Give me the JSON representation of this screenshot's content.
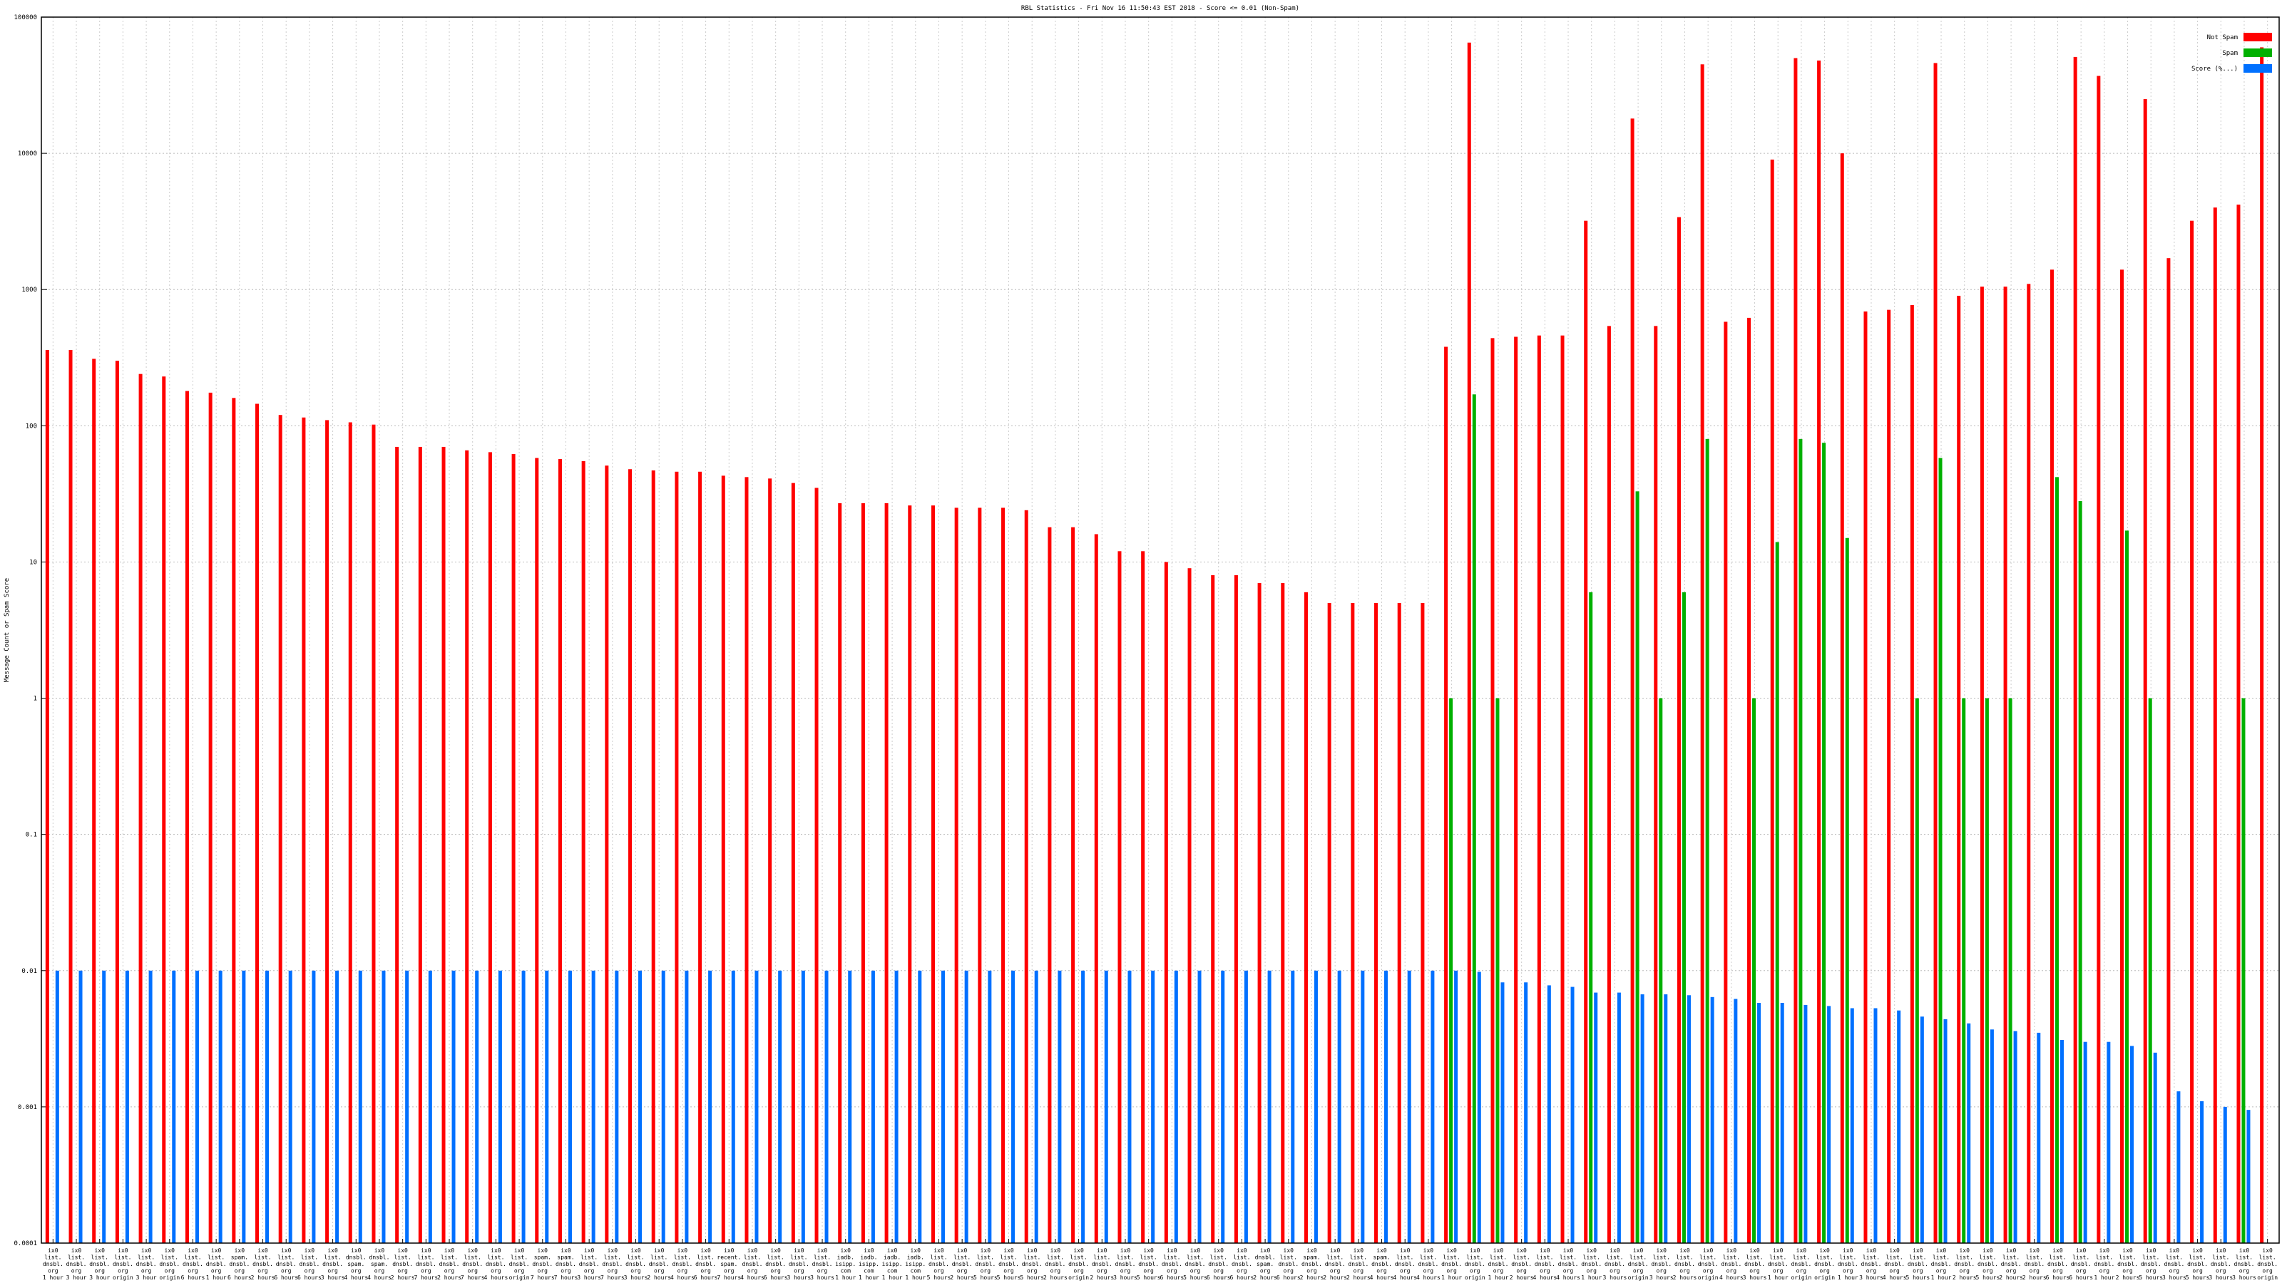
{
  "chart_data": {
    "type": "bar",
    "title": "RBL Statistics - Fri Nov 16 11:50:43 EST 2018 - Score <= 0.01 (Non-Spam)",
    "ylabel": "Message Count or Spam Score",
    "xlabel": "",
    "yscale": "log",
    "ylim": [
      0.0001,
      100000
    ],
    "yticks": [
      "0.0001",
      "0.001",
      "0.01",
      "0.1",
      "1",
      "10",
      "100",
      "1000",
      "10000",
      "100000"
    ],
    "grid": true,
    "legend_position": "top-right",
    "colors": {
      "not_spam": "#ff0000",
      "spam": "#00b000",
      "score": "#0070ff"
    },
    "series": [
      {
        "name": "Not Spam",
        "values": [
          360,
          360,
          310,
          300,
          240,
          230,
          180,
          175,
          160,
          145,
          120,
          115,
          110,
          106,
          102,
          70,
          70,
          70,
          66,
          64,
          62,
          58,
          57,
          55,
          51,
          48,
          47,
          46,
          46,
          43,
          42,
          41,
          38,
          35,
          27,
          27,
          27,
          26,
          26,
          25,
          25,
          25,
          24,
          18,
          18,
          16,
          12,
          12,
          10,
          9,
          8,
          8,
          7,
          7,
          6,
          5,
          5,
          5,
          5,
          5,
          380,
          65000,
          440,
          450,
          460,
          460,
          3200,
          540,
          18000,
          540,
          3400,
          45000,
          580,
          620,
          9000,
          50000,
          48000,
          10000,
          690,
          710,
          770,
          46000,
          900,
          1050,
          1050,
          1100,
          1400,
          51000,
          37000,
          1400,
          25000,
          1700,
          3200,
          4000,
          4200,
          60000
        ]
      },
      {
        "name": "Spam",
        "values": [
          null,
          null,
          null,
          null,
          null,
          null,
          null,
          null,
          null,
          null,
          null,
          null,
          null,
          null,
          null,
          null,
          null,
          null,
          null,
          null,
          null,
          null,
          null,
          null,
          null,
          null,
          null,
          null,
          null,
          null,
          null,
          null,
          null,
          null,
          null,
          null,
          null,
          null,
          null,
          null,
          null,
          null,
          null,
          null,
          null,
          null,
          null,
          null,
          null,
          null,
          null,
          null,
          null,
          null,
          null,
          null,
          null,
          null,
          null,
          null,
          1,
          170,
          1,
          null,
          null,
          null,
          6,
          null,
          33,
          1,
          6,
          80,
          null,
          1,
          14,
          80,
          75,
          15,
          null,
          null,
          1,
          58,
          1,
          1,
          1,
          null,
          42,
          28,
          null,
          17,
          1,
          null,
          null,
          null,
          1,
          null
        ]
      },
      {
        "name": "Score (%...)",
        "values": [
          0.01,
          0.01,
          0.01,
          0.01,
          0.01,
          0.01,
          0.01,
          0.01,
          0.01,
          0.01,
          0.01,
          0.01,
          0.01,
          0.01,
          0.01,
          0.01,
          0.01,
          0.01,
          0.01,
          0.01,
          0.01,
          0.01,
          0.01,
          0.01,
          0.01,
          0.01,
          0.01,
          0.01,
          0.01,
          0.01,
          0.01,
          0.01,
          0.01,
          0.01,
          0.01,
          0.01,
          0.01,
          0.01,
          0.01,
          0.01,
          0.01,
          0.01,
          0.01,
          0.01,
          0.01,
          0.01,
          0.01,
          0.01,
          0.01,
          0.01,
          0.01,
          0.01,
          0.01,
          0.01,
          0.01,
          0.01,
          0.01,
          0.01,
          0.01,
          0.01,
          0.01,
          0.0098,
          0.0082,
          0.0082,
          0.0078,
          0.0076,
          0.0069,
          0.0069,
          0.0067,
          0.0067,
          0.0066,
          0.0064,
          0.0062,
          0.0058,
          0.0058,
          0.0056,
          0.0055,
          0.0053,
          0.0053,
          0.0051,
          0.0046,
          0.0044,
          0.0041,
          0.0037,
          0.0036,
          0.0035,
          0.0031,
          0.003,
          0.003,
          0.0028,
          0.0025,
          0.0013,
          0.0011,
          0.001,
          0.00095,
          null
        ]
      }
    ],
    "categories": [
      [
        "ix0",
        "list.",
        "dnsbl.",
        "org",
        "1 hour"
      ],
      [
        "ix0",
        "list.",
        "dnsbl.",
        "org",
        "3 hour"
      ],
      [
        "ix0",
        "list.",
        "dnsbl.",
        "org",
        "3 hour"
      ],
      [
        "ix0",
        "list.",
        "dnsbl.",
        "org",
        "origin"
      ],
      [
        "ix0",
        "list.",
        "dnsbl.",
        "org",
        "3 hour"
      ],
      [
        "ix0",
        "list.",
        "dnsbl.",
        "org",
        "origin"
      ],
      [
        "ix0",
        "list.",
        "dnsbl.",
        "org",
        "6 hours"
      ],
      [
        "ix0",
        "list.",
        "dnsbl.",
        "org",
        "1 hour"
      ],
      [
        "ix0",
        "spam.",
        "dnsbl.",
        "org",
        "6 hours"
      ],
      [
        "ix0",
        "list.",
        "dnsbl.",
        "org",
        "2 hours"
      ],
      [
        "ix0",
        "list.",
        "dnsbl.",
        "org",
        "6 hours"
      ],
      [
        "ix0",
        "list.",
        "dnsbl.",
        "org",
        "6 hours"
      ],
      [
        "ix0",
        "list.",
        "dnsbl.",
        "org",
        "3 hours"
      ],
      [
        "ix0",
        "dnsbl.",
        "spam.",
        "org",
        "4 hours"
      ],
      [
        "ix0",
        "dnsbl.",
        "spam.",
        "org",
        "4 hours"
      ],
      [
        "ix0",
        "list.",
        "dnsbl.",
        "org",
        "2 hours"
      ],
      [
        "ix0",
        "list.",
        "dnsbl.",
        "org",
        "7 hours"
      ],
      [
        "ix0",
        "list.",
        "dnsbl.",
        "org",
        "2 hours"
      ],
      [
        "ix0",
        "list.",
        "dnsbl.",
        "org",
        "7 hours"
      ],
      [
        "ix0",
        "list.",
        "dnsbl.",
        "org",
        "4 hours"
      ],
      [
        "ix0",
        "list.",
        "dnsbl.",
        "org",
        "origin"
      ],
      [
        "ix0",
        "spam.",
        "dnsbl.",
        "org",
        "7 hours"
      ],
      [
        "ix0",
        "spam.",
        "dnsbl.",
        "org",
        "7 hours"
      ],
      [
        "ix0",
        "list.",
        "dnsbl.",
        "org",
        "3 hours"
      ],
      [
        "ix0",
        "list.",
        "dnsbl.",
        "org",
        "7 hours"
      ],
      [
        "ix0",
        "list.",
        "dnsbl.",
        "org",
        "3 hours"
      ],
      [
        "ix0",
        "list.",
        "dnsbl.",
        "org",
        "2 hours"
      ],
      [
        "ix0",
        "list.",
        "dnsbl.",
        "org",
        "4 hours"
      ],
      [
        "ix0",
        "list.",
        "dnsbl.",
        "org",
        "6 hours"
      ],
      [
        "ix0",
        "recent.",
        "spam.",
        "org",
        "7 hours"
      ],
      [
        "ix0",
        "list.",
        "dnsbl.",
        "org",
        "4 hours"
      ],
      [
        "ix0",
        "list.",
        "dnsbl.",
        "org",
        "6 hours"
      ],
      [
        "ix0",
        "list.",
        "dnsbl.",
        "org",
        "3 hours"
      ],
      [
        "ix0",
        "list.",
        "dnsbl.",
        "org",
        "3 hours"
      ],
      [
        "ix0",
        "iadb.",
        "isipp.",
        "com",
        "1 hour"
      ],
      [
        "ix0",
        "iadb.",
        "isipp.",
        "com",
        "1 hour"
      ],
      [
        "ix0",
        "iadb.",
        "isipp.",
        "com",
        "1 hour"
      ],
      [
        "ix0",
        "iadb.",
        "isipp.",
        "com",
        "1 hour"
      ],
      [
        "ix0",
        "list.",
        "dnsbl.",
        "org",
        "5 hours"
      ],
      [
        "ix0",
        "list.",
        "dnsbl.",
        "org",
        "2 hours"
      ],
      [
        "ix0",
        "list.",
        "dnsbl.",
        "org",
        "5 hours"
      ],
      [
        "ix0",
        "list.",
        "dnsbl.",
        "org",
        "5 hours"
      ],
      [
        "ix0",
        "list.",
        "dnsbl.",
        "org",
        "5 hours"
      ],
      [
        "ix0",
        "list.",
        "dnsbl.",
        "org",
        "2 hours"
      ],
      [
        "ix0",
        "list.",
        "dnsbl.",
        "org",
        "origin"
      ],
      [
        "ix0",
        "list.",
        "dnsbl.",
        "org",
        "2 hours"
      ],
      [
        "ix0",
        "list.",
        "dnsbl.",
        "org",
        "3 hours"
      ],
      [
        "ix0",
        "list.",
        "dnsbl.",
        "org",
        "5 hours"
      ],
      [
        "ix0",
        "list.",
        "dnsbl.",
        "org",
        "6 hours"
      ],
      [
        "ix0",
        "list.",
        "dnsbl.",
        "org",
        "5 hours"
      ],
      [
        "ix0",
        "list.",
        "dnsbl.",
        "org",
        "6 hours"
      ],
      [
        "ix0",
        "list.",
        "dnsbl.",
        "org",
        "6 hours"
      ],
      [
        "ix0",
        "dnsbl.",
        "spam.",
        "org",
        "2 hours"
      ],
      [
        "ix0",
        "list.",
        "dnsbl.",
        "org",
        "6 hours"
      ],
      [
        "ix0",
        "spam.",
        "dnsbl.",
        "org",
        "2 hours"
      ],
      [
        "ix0",
        "list.",
        "dnsbl.",
        "org",
        "2 hours"
      ],
      [
        "ix0",
        "list.",
        "dnsbl.",
        "org",
        "2 hours"
      ],
      [
        "ix0",
        "spam.",
        "dnsbl.",
        "org",
        "4 hours"
      ],
      [
        "ix0",
        "list.",
        "dnsbl.",
        "org",
        "4 hours"
      ],
      [
        "ix0",
        "list.",
        "dnsbl.",
        "org",
        "4 hours"
      ],
      [
        "ix0",
        "list.",
        "dnsbl.",
        "org",
        "1 hour"
      ],
      [
        "ix0",
        "list.",
        "dnsbl.",
        "org",
        "origin"
      ],
      [
        "ix0",
        "list.",
        "dnsbl.",
        "org",
        "1 hour"
      ],
      [
        "ix0",
        "list.",
        "dnsbl.",
        "org",
        "2 hours"
      ],
      [
        "ix0",
        "list.",
        "dnsbl.",
        "org",
        "4 hours"
      ],
      [
        "ix0",
        "list.",
        "dnsbl.",
        "org",
        "4 hours"
      ],
      [
        "ix0",
        "list.",
        "dnsbl.",
        "org",
        "1 hour"
      ],
      [
        "ix0",
        "list.",
        "dnsbl.",
        "org",
        "3 hours"
      ],
      [
        "ix0",
        "list.",
        "dnsbl.",
        "org",
        "origin"
      ],
      [
        "ix0",
        "list.",
        "dnsbl.",
        "org",
        "3 hours"
      ],
      [
        "ix0",
        "list.",
        "dnsbl.",
        "org",
        "2 hours"
      ],
      [
        "ix0",
        "list.",
        "dnsbl.",
        "org",
        "origin"
      ],
      [
        "ix0",
        "list.",
        "dnsbl.",
        "org",
        "4 hours"
      ],
      [
        "ix0",
        "list.",
        "dnsbl.",
        "org",
        "3 hours"
      ],
      [
        "ix0",
        "list.",
        "dnsbl.",
        "org",
        "1 hour"
      ],
      [
        "ix0",
        "list.",
        "dnsbl.",
        "org",
        "origin"
      ],
      [
        "ix0",
        "list.",
        "dnsbl.",
        "org",
        "origin"
      ],
      [
        "ix0",
        "list.",
        "dnsbl.",
        "org",
        "1 hour"
      ],
      [
        "ix0",
        "list.",
        "dnsbl.",
        "org",
        "3 hours"
      ],
      [
        "ix0",
        "list.",
        "dnsbl.",
        "org",
        "4 hours"
      ],
      [
        "ix0",
        "list.",
        "dnsbl.",
        "org",
        "5 hours"
      ],
      [
        "ix0",
        "list.",
        "dnsbl.",
        "org",
        "1 hour"
      ],
      [
        "ix0",
        "list.",
        "dnsbl.",
        "org",
        "2 hours"
      ],
      [
        "ix0",
        "list.",
        "dnsbl.",
        "org",
        "5 hours"
      ],
      [
        "ix0",
        "list.",
        "dnsbl.",
        "org",
        "2 hours"
      ],
      [
        "ix0",
        "list.",
        "dnsbl.",
        "org",
        "2 hours"
      ],
      [
        "ix0",
        "list.",
        "dnsbl.",
        "org",
        "6 hours"
      ],
      [
        "ix0",
        "list.",
        "dnsbl.",
        "org",
        "6 hours"
      ],
      [
        "ix0",
        "list.",
        "dnsbl.",
        "org",
        "1 hour"
      ],
      [
        "ix0",
        "list.",
        "dnsbl.",
        "org",
        "2 hours"
      ],
      [
        "ix0",
        "list.",
        "dnsbl.",
        "org",
        "5 hours"
      ],
      [
        "ix0",
        "list.",
        "dnsbl.",
        "org",
        "3 hours"
      ],
      [
        "ix0",
        "list.",
        "dnsbl.",
        "org",
        "5 hours"
      ],
      [
        "ix0",
        "list.",
        "dnsbl.",
        "org",
        "3 hours"
      ],
      [
        "ix0",
        "list.",
        "dnsbl.",
        "org",
        "3 hours"
      ],
      [
        "ix0",
        "list.",
        "dnsbl.",
        "org",
        "origin"
      ]
    ]
  }
}
